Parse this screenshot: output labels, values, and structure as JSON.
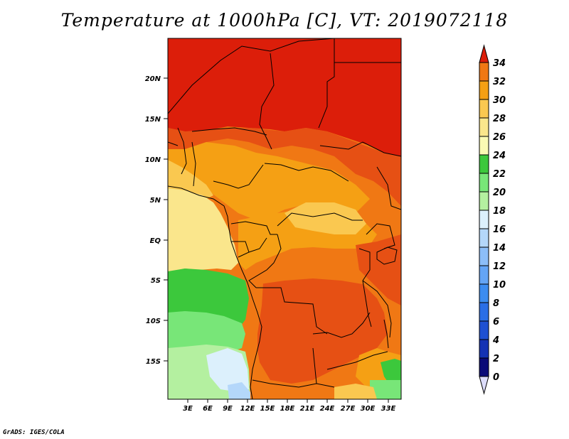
{
  "title": "Temperature at 1000hPa [C], VT: 2019072118",
  "credit": "GrADS: IGES/COLA",
  "map": {
    "lat_labels": [
      "20N",
      "15N",
      "10N",
      "5N",
      "EQ",
      "5S",
      "10S",
      "15S"
    ],
    "lon_labels": [
      "3E",
      "6E",
      "9E",
      "12E",
      "15E",
      "18E",
      "21E",
      "24E",
      "27E",
      "30E",
      "33E"
    ]
  },
  "colorbar": {
    "labels": [
      "0",
      "2",
      "4",
      "6",
      "8",
      "10",
      "12",
      "14",
      "16",
      "18",
      "20",
      "22",
      "24",
      "26",
      "28",
      "30",
      "32",
      "34"
    ],
    "colors": [
      "#0a0a78",
      "#1432b4",
      "#1e50d2",
      "#2a6ee6",
      "#3c8cf0",
      "#64a5f5",
      "#8cbef8",
      "#b4d7fa",
      "#dcf0fc",
      "#b4f0a0",
      "#78e678",
      "#3cc83c",
      "#fafab4",
      "#fae68c",
      "#fac850",
      "#f5a014",
      "#f07814",
      "#e65014",
      "#dc1e0a"
    ],
    "under_color": "#dcdcfa",
    "over_color": "#dc1e0a"
  }
}
